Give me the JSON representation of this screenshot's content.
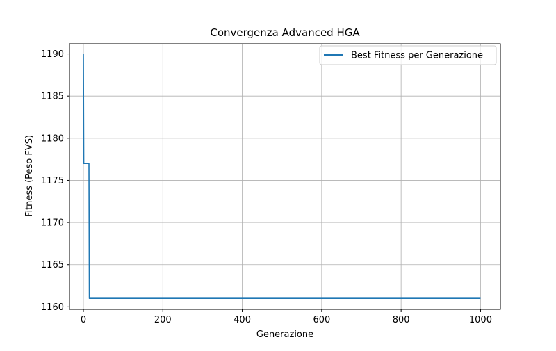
{
  "chart_data": {
    "type": "line",
    "title": "Convergenza Advanced HGA",
    "xlabel": "Generazione",
    "ylabel": "Fitness (Peso FVS)",
    "xlim": [
      -35,
      1050
    ],
    "ylim": [
      1159.7,
      1191.2
    ],
    "xticks": [
      0,
      200,
      400,
      600,
      800,
      1000
    ],
    "yticks": [
      1160,
      1165,
      1170,
      1175,
      1180,
      1185,
      1190
    ],
    "grid": true,
    "legend_position": "top-right",
    "series": [
      {
        "name": "Best Fitness per Generazione",
        "color": "#1f77b4",
        "x": [
          0,
          1,
          14,
          15,
          1000
        ],
        "y": [
          1190,
          1177,
          1177,
          1161,
          1161
        ]
      }
    ]
  }
}
